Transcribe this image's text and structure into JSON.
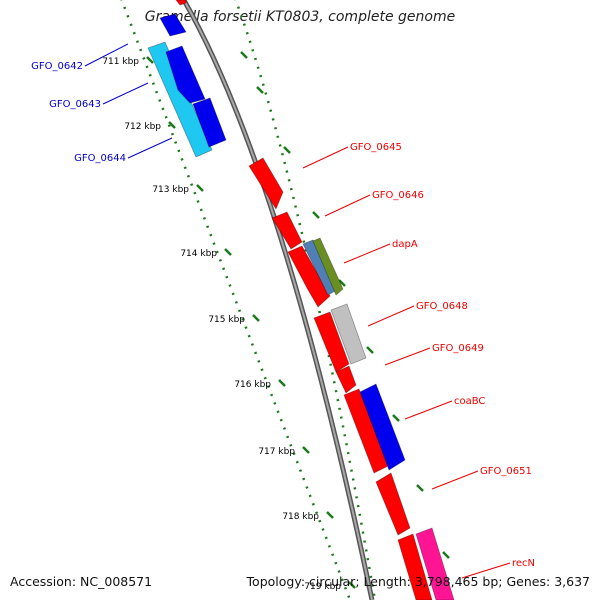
{
  "title": "Gramella forsetii KT0803, complete genome",
  "footer": {
    "accession_label": "Accession:",
    "accession": "NC_008571",
    "topology_label": "Topology:",
    "topology": "circular",
    "length_label": "Length:",
    "length": "3,798,465 bp",
    "genes_label": "Genes:",
    "genes": "3,637"
  },
  "colors": {
    "forward_gene": "#ff0000",
    "reverse_gene_dark": "#0000ee",
    "reverse_gene_light": "#1ec8f0",
    "backbone": "#808080",
    "ticks": "#1a7a1a",
    "forward_label": "#ee0000",
    "reverse_label": "#0000cc",
    "cog_green": "#6b8e23",
    "cog_steelblue": "#4f7fb5",
    "cog_gray": "#c0c0c0",
    "cog_pink": "#ff1493"
  },
  "scale_ticks": [
    "711 kbp",
    "712 kbp",
    "713 kbp",
    "714 kbp",
    "715 kbp",
    "716 kbp",
    "717 kbp",
    "718 kbp",
    "719 kbp"
  ],
  "gene_labels_reverse": [
    "GFO_0642",
    "GFO_0643",
    "GFO_0644"
  ],
  "gene_labels_forward": [
    "GFO_0645",
    "GFO_0646",
    "dapA",
    "GFO_0648",
    "GFO_0649",
    "coaBC",
    "GFO_0651",
    "recN"
  ]
}
